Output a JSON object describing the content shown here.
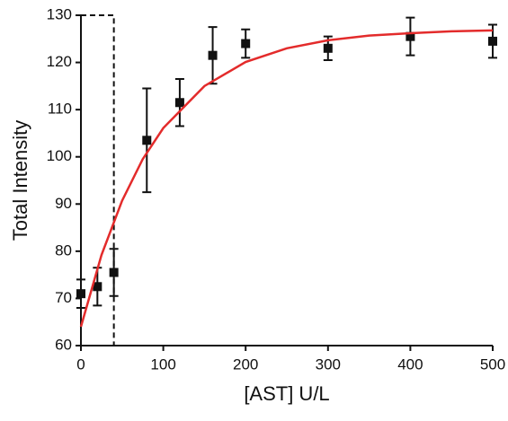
{
  "chart_data": {
    "type": "scatter",
    "xlabel": "[AST] U/L",
    "ylabel": "Total Intensity",
    "xlim": [
      0,
      500
    ],
    "xticks": [
      0,
      100,
      200,
      300,
      400,
      500
    ],
    "ylim": [
      60,
      130
    ],
    "yticks": [
      60,
      70,
      80,
      90,
      100,
      110,
      120,
      130
    ],
    "highlight_x": [
      0,
      40
    ],
    "series": [
      {
        "color": "#111111",
        "style": "markers",
        "x": [
          0,
          20,
          40,
          80,
          120,
          160,
          200,
          300,
          400,
          500
        ],
        "values": [
          71,
          72.5,
          75.5,
          103.5,
          111.5,
          121.5,
          124,
          123,
          125.5,
          124.5
        ],
        "errors": [
          3,
          4,
          5,
          11,
          5,
          6,
          3,
          2.5,
          4,
          3.5
        ]
      },
      {
        "color": "#e32b2b",
        "style": "line",
        "x": [
          0,
          25,
          50,
          75,
          100,
          150,
          200,
          250,
          300,
          350,
          400,
          450,
          500
        ],
        "values": [
          64,
          79.2,
          90.7,
          99.5,
          106.1,
          115,
          120.1,
          123,
          124.7,
          125.7,
          126.2,
          126.6,
          126.8
        ]
      }
    ]
  }
}
